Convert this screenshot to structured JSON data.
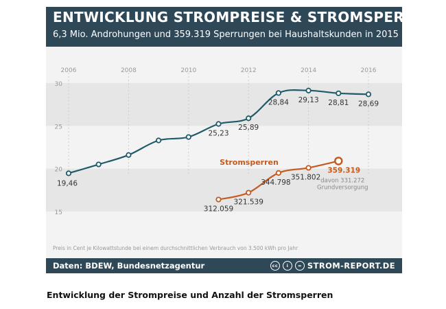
{
  "infographic": {
    "title": "ENTWICKLUNG STROMPREISE & STROMSPERREN",
    "subtitle": "6,3 Mio. Androhungen und 359.319 Sperrungen bei Haushaltskunden in 2015",
    "footnote": "Preis in Cent je Kilowattstunde bei einem durchschnittlichen Verbrauch von 3.500 kWh pro Jahr",
    "source": "Daten: BDEW, Bundesnetzagentur",
    "brand": "STROM-REPORT.DE",
    "brand_icons": [
      "cc",
      "i",
      "="
    ]
  },
  "caption": "Entwicklung der Strompreise und Anzahl der Stromsperren",
  "colors": {
    "header_bg": "#2f4857",
    "price_line": "#1f5a6a",
    "sperren_line": "#c45a1e",
    "band": "#e6e6e6",
    "card_bg": "#f3f3f3"
  },
  "chart_data": {
    "type": "line",
    "x_ticks": [
      "2006",
      "2008",
      "2010",
      "2012",
      "2014",
      "2016"
    ],
    "y_ticks": [
      "30",
      "25",
      "20",
      "15"
    ],
    "xlim": [
      2006,
      2016
    ],
    "ylim": [
      15,
      30
    ],
    "series": [
      {
        "name": "Strompreis",
        "unit": "Cent/kWh",
        "x": [
          2006,
          2007,
          2008,
          2009,
          2010,
          2011,
          2012,
          2013,
          2014,
          2015,
          2016
        ],
        "values": [
          19.46,
          20.5,
          21.6,
          23.3,
          23.7,
          25.23,
          25.89,
          28.84,
          29.13,
          28.81,
          28.69
        ],
        "labels": [
          "19,46",
          "",
          "",
          "",
          "",
          "25,23",
          "25,89",
          "28,84",
          "29,13",
          "28,81",
          "28,69"
        ]
      },
      {
        "name": "Stromsperren",
        "x": [
          2011,
          2012,
          2013,
          2014,
          2015
        ],
        "counts": [
          312059,
          321539,
          344798,
          351802,
          359319
        ],
        "plot_values": [
          16.4,
          17.2,
          19.5,
          20.1,
          20.9
        ],
        "labels": [
          "312.059",
          "321.539",
          "344.798",
          "351.802",
          "359.319"
        ]
      }
    ],
    "series_label": "Stromsperren",
    "annotation": "davon 331.272\nGrundversorgung",
    "annotation_lines": [
      "davon 331.272",
      "Grundversorgung"
    ]
  }
}
